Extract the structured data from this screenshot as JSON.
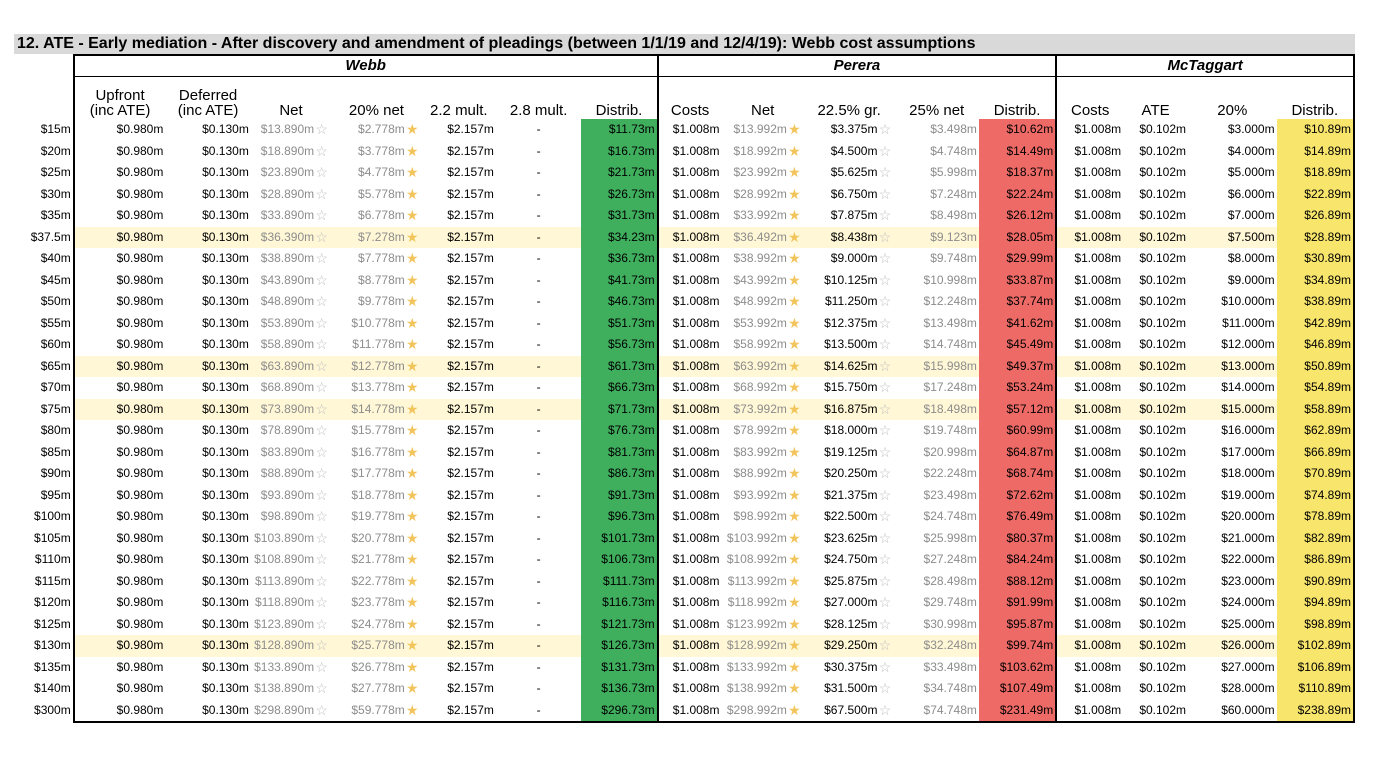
{
  "title": "12.  ATE - Early mediation - After discovery and amendment of pleadings (between 1/1/19 and 12/4/19): Webb cost assumptions",
  "groups": {
    "webb": "Webb",
    "perera": "Perera",
    "mctaggart": "McTaggart"
  },
  "headers": {
    "webb": [
      "Upfront\n(inc ATE)",
      "Deferred\n(inc ATE)",
      "Net",
      "20% net",
      "2.2 mult.",
      "2.8 mult.",
      "Distrib."
    ],
    "perera": [
      "Costs",
      "Net",
      "22.5% gr.",
      "25% net",
      "Distrib."
    ],
    "mctaggart": [
      "Costs",
      "ATE",
      "20%",
      "Distrib."
    ]
  },
  "colors": {
    "webb_distrib": "#3fae5d",
    "perera_distrib": "#ee6a66",
    "mctaggart_distrib": "#f8e56c",
    "highlight_row": "#fff7d6",
    "title_bg": "#d9d9d9"
  },
  "icons": {
    "full": "star-filled-icon",
    "empty": "star-outline-icon"
  },
  "rows": [
    {
      "label": "$15m",
      "hl": false,
      "w": [
        "$0.980m",
        "$0.130m",
        "$13.890m",
        "$2.778m",
        "$2.157m",
        "-",
        "$11.73m"
      ],
      "p": [
        "$1.008m",
        "$13.992m",
        "$3.375m",
        "$3.498m",
        "$10.62m"
      ],
      "m": [
        "$1.008m",
        "$0.102m",
        "$3.000m",
        "$10.89m"
      ]
    },
    {
      "label": "$20m",
      "hl": false,
      "w": [
        "$0.980m",
        "$0.130m",
        "$18.890m",
        "$3.778m",
        "$2.157m",
        "-",
        "$16.73m"
      ],
      "p": [
        "$1.008m",
        "$18.992m",
        "$4.500m",
        "$4.748m",
        "$14.49m"
      ],
      "m": [
        "$1.008m",
        "$0.102m",
        "$4.000m",
        "$14.89m"
      ]
    },
    {
      "label": "$25m",
      "hl": false,
      "w": [
        "$0.980m",
        "$0.130m",
        "$23.890m",
        "$4.778m",
        "$2.157m",
        "-",
        "$21.73m"
      ],
      "p": [
        "$1.008m",
        "$23.992m",
        "$5.625m",
        "$5.998m",
        "$18.37m"
      ],
      "m": [
        "$1.008m",
        "$0.102m",
        "$5.000m",
        "$18.89m"
      ]
    },
    {
      "label": "$30m",
      "hl": false,
      "w": [
        "$0.980m",
        "$0.130m",
        "$28.890m",
        "$5.778m",
        "$2.157m",
        "-",
        "$26.73m"
      ],
      "p": [
        "$1.008m",
        "$28.992m",
        "$6.750m",
        "$7.248m",
        "$22.24m"
      ],
      "m": [
        "$1.008m",
        "$0.102m",
        "$6.000m",
        "$22.89m"
      ]
    },
    {
      "label": "$35m",
      "hl": false,
      "w": [
        "$0.980m",
        "$0.130m",
        "$33.890m",
        "$6.778m",
        "$2.157m",
        "-",
        "$31.73m"
      ],
      "p": [
        "$1.008m",
        "$33.992m",
        "$7.875m",
        "$8.498m",
        "$26.12m"
      ],
      "m": [
        "$1.008m",
        "$0.102m",
        "$7.000m",
        "$26.89m"
      ]
    },
    {
      "label": "$37.5m",
      "hl": true,
      "w": [
        "$0.980m",
        "$0.130m",
        "$36.390m",
        "$7.278m",
        "$2.157m",
        "-",
        "$34.23m"
      ],
      "p": [
        "$1.008m",
        "$36.492m",
        "$8.438m",
        "$9.123m",
        "$28.05m"
      ],
      "m": [
        "$1.008m",
        "$0.102m",
        "$7.500m",
        "$28.89m"
      ]
    },
    {
      "label": "$40m",
      "hl": false,
      "w": [
        "$0.980m",
        "$0.130m",
        "$38.890m",
        "$7.778m",
        "$2.157m",
        "-",
        "$36.73m"
      ],
      "p": [
        "$1.008m",
        "$38.992m",
        "$9.000m",
        "$9.748m",
        "$29.99m"
      ],
      "m": [
        "$1.008m",
        "$0.102m",
        "$8.000m",
        "$30.89m"
      ]
    },
    {
      "label": "$45m",
      "hl": false,
      "w": [
        "$0.980m",
        "$0.130m",
        "$43.890m",
        "$8.778m",
        "$2.157m",
        "-",
        "$41.73m"
      ],
      "p": [
        "$1.008m",
        "$43.992m",
        "$10.125m",
        "$10.998m",
        "$33.87m"
      ],
      "m": [
        "$1.008m",
        "$0.102m",
        "$9.000m",
        "$34.89m"
      ]
    },
    {
      "label": "$50m",
      "hl": false,
      "w": [
        "$0.980m",
        "$0.130m",
        "$48.890m",
        "$9.778m",
        "$2.157m",
        "-",
        "$46.73m"
      ],
      "p": [
        "$1.008m",
        "$48.992m",
        "$11.250m",
        "$12.248m",
        "$37.74m"
      ],
      "m": [
        "$1.008m",
        "$0.102m",
        "$10.000m",
        "$38.89m"
      ]
    },
    {
      "label": "$55m",
      "hl": false,
      "w": [
        "$0.980m",
        "$0.130m",
        "$53.890m",
        "$10.778m",
        "$2.157m",
        "-",
        "$51.73m"
      ],
      "p": [
        "$1.008m",
        "$53.992m",
        "$12.375m",
        "$13.498m",
        "$41.62m"
      ],
      "m": [
        "$1.008m",
        "$0.102m",
        "$11.000m",
        "$42.89m"
      ]
    },
    {
      "label": "$60m",
      "hl": false,
      "w": [
        "$0.980m",
        "$0.130m",
        "$58.890m",
        "$11.778m",
        "$2.157m",
        "-",
        "$56.73m"
      ],
      "p": [
        "$1.008m",
        "$58.992m",
        "$13.500m",
        "$14.748m",
        "$45.49m"
      ],
      "m": [
        "$1.008m",
        "$0.102m",
        "$12.000m",
        "$46.89m"
      ]
    },
    {
      "label": "$65m",
      "hl": true,
      "w": [
        "$0.980m",
        "$0.130m",
        "$63.890m",
        "$12.778m",
        "$2.157m",
        "-",
        "$61.73m"
      ],
      "p": [
        "$1.008m",
        "$63.992m",
        "$14.625m",
        "$15.998m",
        "$49.37m"
      ],
      "m": [
        "$1.008m",
        "$0.102m",
        "$13.000m",
        "$50.89m"
      ]
    },
    {
      "label": "$70m",
      "hl": false,
      "w": [
        "$0.980m",
        "$0.130m",
        "$68.890m",
        "$13.778m",
        "$2.157m",
        "-",
        "$66.73m"
      ],
      "p": [
        "$1.008m",
        "$68.992m",
        "$15.750m",
        "$17.248m",
        "$53.24m"
      ],
      "m": [
        "$1.008m",
        "$0.102m",
        "$14.000m",
        "$54.89m"
      ]
    },
    {
      "label": "$75m",
      "hl": true,
      "w": [
        "$0.980m",
        "$0.130m",
        "$73.890m",
        "$14.778m",
        "$2.157m",
        "-",
        "$71.73m"
      ],
      "p": [
        "$1.008m",
        "$73.992m",
        "$16.875m",
        "$18.498m",
        "$57.12m"
      ],
      "m": [
        "$1.008m",
        "$0.102m",
        "$15.000m",
        "$58.89m"
      ]
    },
    {
      "label": "$80m",
      "hl": false,
      "w": [
        "$0.980m",
        "$0.130m",
        "$78.890m",
        "$15.778m",
        "$2.157m",
        "-",
        "$76.73m"
      ],
      "p": [
        "$1.008m",
        "$78.992m",
        "$18.000m",
        "$19.748m",
        "$60.99m"
      ],
      "m": [
        "$1.008m",
        "$0.102m",
        "$16.000m",
        "$62.89m"
      ]
    },
    {
      "label": "$85m",
      "hl": false,
      "w": [
        "$0.980m",
        "$0.130m",
        "$83.890m",
        "$16.778m",
        "$2.157m",
        "-",
        "$81.73m"
      ],
      "p": [
        "$1.008m",
        "$83.992m",
        "$19.125m",
        "$20.998m",
        "$64.87m"
      ],
      "m": [
        "$1.008m",
        "$0.102m",
        "$17.000m",
        "$66.89m"
      ]
    },
    {
      "label": "$90m",
      "hl": false,
      "w": [
        "$0.980m",
        "$0.130m",
        "$88.890m",
        "$17.778m",
        "$2.157m",
        "-",
        "$86.73m"
      ],
      "p": [
        "$1.008m",
        "$88.992m",
        "$20.250m",
        "$22.248m",
        "$68.74m"
      ],
      "m": [
        "$1.008m",
        "$0.102m",
        "$18.000m",
        "$70.89m"
      ]
    },
    {
      "label": "$95m",
      "hl": false,
      "w": [
        "$0.980m",
        "$0.130m",
        "$93.890m",
        "$18.778m",
        "$2.157m",
        "-",
        "$91.73m"
      ],
      "p": [
        "$1.008m",
        "$93.992m",
        "$21.375m",
        "$23.498m",
        "$72.62m"
      ],
      "m": [
        "$1.008m",
        "$0.102m",
        "$19.000m",
        "$74.89m"
      ]
    },
    {
      "label": "$100m",
      "hl": false,
      "w": [
        "$0.980m",
        "$0.130m",
        "$98.890m",
        "$19.778m",
        "$2.157m",
        "-",
        "$96.73m"
      ],
      "p": [
        "$1.008m",
        "$98.992m",
        "$22.500m",
        "$24.748m",
        "$76.49m"
      ],
      "m": [
        "$1.008m",
        "$0.102m",
        "$20.000m",
        "$78.89m"
      ]
    },
    {
      "label": "$105m",
      "hl": false,
      "w": [
        "$0.980m",
        "$0.130m",
        "$103.890m",
        "$20.778m",
        "$2.157m",
        "-",
        "$101.73m"
      ],
      "p": [
        "$1.008m",
        "$103.992m",
        "$23.625m",
        "$25.998m",
        "$80.37m"
      ],
      "m": [
        "$1.008m",
        "$0.102m",
        "$21.000m",
        "$82.89m"
      ]
    },
    {
      "label": "$110m",
      "hl": false,
      "w": [
        "$0.980m",
        "$0.130m",
        "$108.890m",
        "$21.778m",
        "$2.157m",
        "-",
        "$106.73m"
      ],
      "p": [
        "$1.008m",
        "$108.992m",
        "$24.750m",
        "$27.248m",
        "$84.24m"
      ],
      "m": [
        "$1.008m",
        "$0.102m",
        "$22.000m",
        "$86.89m"
      ]
    },
    {
      "label": "$115m",
      "hl": false,
      "w": [
        "$0.980m",
        "$0.130m",
        "$113.890m",
        "$22.778m",
        "$2.157m",
        "-",
        "$111.73m"
      ],
      "p": [
        "$1.008m",
        "$113.992m",
        "$25.875m",
        "$28.498m",
        "$88.12m"
      ],
      "m": [
        "$1.008m",
        "$0.102m",
        "$23.000m",
        "$90.89m"
      ]
    },
    {
      "label": "$120m",
      "hl": false,
      "w": [
        "$0.980m",
        "$0.130m",
        "$118.890m",
        "$23.778m",
        "$2.157m",
        "-",
        "$116.73m"
      ],
      "p": [
        "$1.008m",
        "$118.992m",
        "$27.000m",
        "$29.748m",
        "$91.99m"
      ],
      "m": [
        "$1.008m",
        "$0.102m",
        "$24.000m",
        "$94.89m"
      ]
    },
    {
      "label": "$125m",
      "hl": false,
      "w": [
        "$0.980m",
        "$0.130m",
        "$123.890m",
        "$24.778m",
        "$2.157m",
        "-",
        "$121.73m"
      ],
      "p": [
        "$1.008m",
        "$123.992m",
        "$28.125m",
        "$30.998m",
        "$95.87m"
      ],
      "m": [
        "$1.008m",
        "$0.102m",
        "$25.000m",
        "$98.89m"
      ]
    },
    {
      "label": "$130m",
      "hl": true,
      "w": [
        "$0.980m",
        "$0.130m",
        "$128.890m",
        "$25.778m",
        "$2.157m",
        "-",
        "$126.73m"
      ],
      "p": [
        "$1.008m",
        "$128.992m",
        "$29.250m",
        "$32.248m",
        "$99.74m"
      ],
      "m": [
        "$1.008m",
        "$0.102m",
        "$26.000m",
        "$102.89m"
      ]
    },
    {
      "label": "$135m",
      "hl": false,
      "w": [
        "$0.980m",
        "$0.130m",
        "$133.890m",
        "$26.778m",
        "$2.157m",
        "-",
        "$131.73m"
      ],
      "p": [
        "$1.008m",
        "$133.992m",
        "$30.375m",
        "$33.498m",
        "$103.62m"
      ],
      "m": [
        "$1.008m",
        "$0.102m",
        "$27.000m",
        "$106.89m"
      ]
    },
    {
      "label": "$140m",
      "hl": false,
      "w": [
        "$0.980m",
        "$0.130m",
        "$138.890m",
        "$27.778m",
        "$2.157m",
        "-",
        "$136.73m"
      ],
      "p": [
        "$1.008m",
        "$138.992m",
        "$31.500m",
        "$34.748m",
        "$107.49m"
      ],
      "m": [
        "$1.008m",
        "$0.102m",
        "$28.000m",
        "$110.89m"
      ]
    },
    {
      "label": "$300m",
      "hl": false,
      "w": [
        "$0.980m",
        "$0.130m",
        "$298.890m",
        "$59.778m",
        "$2.157m",
        "-",
        "$296.73m"
      ],
      "p": [
        "$1.008m",
        "$298.992m",
        "$67.500m",
        "$74.748m",
        "$231.49m"
      ],
      "m": [
        "$1.008m",
        "$0.102m",
        "$60.000m",
        "$238.89m"
      ]
    }
  ]
}
